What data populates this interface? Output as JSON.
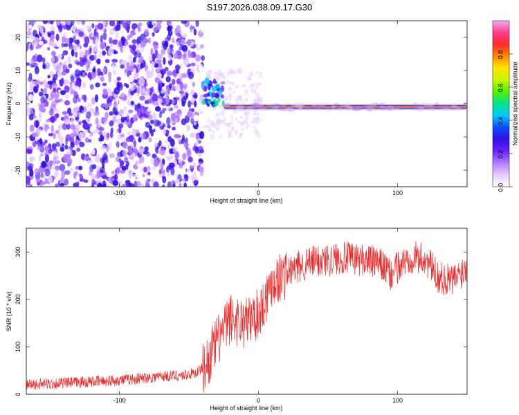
{
  "title": "S197.2026.038.09.17.G30",
  "colors": {
    "snr_line": "#ee2a2a",
    "background": "#ffffff",
    "colormap": [
      "#ffffff",
      "#e6ccff",
      "#b37bff",
      "#6a24ff",
      "#3010e0",
      "#0a4cff",
      "#00c8ff",
      "#00e38a",
      "#52f200",
      "#c8f500",
      "#ffe400",
      "#ff8c00",
      "#ff2a2a",
      "#ff3a8c",
      "#f0aaf0"
    ]
  },
  "chart_data": [
    {
      "type": "heatmap",
      "subtype": "spectrogram",
      "title": "S197.2026.038.09.17.G30",
      "xlabel": "Height of straight line (km)",
      "ylabel": "Frequency (Hz)",
      "xlim": [
        -167,
        150
      ],
      "ylim": [
        -25,
        25
      ],
      "xticks": [
        -100,
        0,
        100
      ],
      "yticks": [
        20,
        10,
        0,
        -10,
        -20
      ],
      "colorbar": {
        "label": "Normalized spectral amplitude",
        "range": [
          0.0,
          1.0
        ],
        "ticks": [
          "0.0",
          "0.2",
          "0.4",
          "0.6",
          "0.8"
        ]
      },
      "regions": [
        {
          "description": "noise",
          "x_range": [
            -167,
            -40
          ],
          "freq_range": [
            -25,
            25
          ],
          "amplitude": 0.15
        },
        {
          "description": "signal onset",
          "x_range": [
            -40,
            -25
          ],
          "freq_center": 3,
          "amplitude": 0.35
        },
        {
          "description": "carrier",
          "x_range": [
            -25,
            150
          ],
          "freq_center": -1,
          "amplitude": 0.95
        }
      ]
    },
    {
      "type": "line",
      "xlabel": "Height of straight line (km)",
      "ylabel": "SNR (10 * v/v)",
      "xlim": [
        -167,
        150
      ],
      "ylim": [
        0,
        350
      ],
      "xticks": [
        -100,
        0,
        100
      ],
      "yticks": [
        0,
        100,
        200,
        300
      ],
      "series": [
        {
          "x": [
            -167,
            -150,
            -130,
            -110,
            -90,
            -70,
            -55,
            -45,
            -38,
            -30,
            -20,
            -10,
            0,
            5,
            10,
            15,
            20,
            30,
            40,
            50,
            60,
            70,
            80,
            90,
            95,
            100,
            110,
            120,
            130,
            140,
            150
          ],
          "values": [
            20,
            22,
            25,
            28,
            32,
            38,
            40,
            45,
            60,
            110,
            160,
            150,
            170,
            200,
            240,
            245,
            255,
            270,
            280,
            283,
            288,
            285,
            282,
            270,
            250,
            268,
            290,
            285,
            245,
            240,
            270
          ]
        }
      ]
    }
  ]
}
